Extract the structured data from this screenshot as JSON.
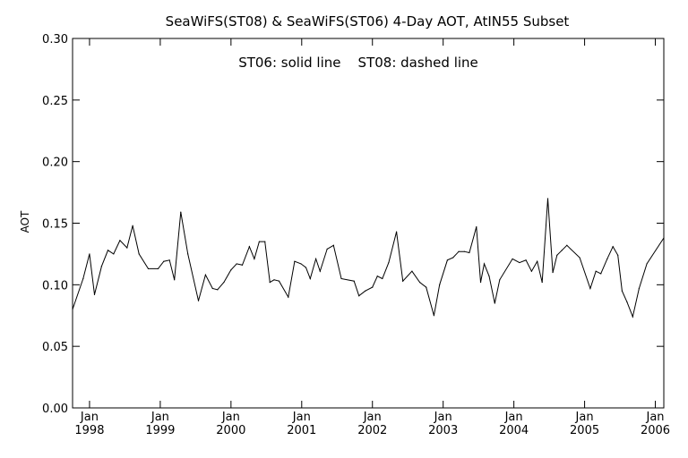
{
  "chart_data": {
    "type": "line",
    "title": "SeaWiFS(ST08) & SeaWiFS(ST06) 4-Day AOT, AtIN55 Subset",
    "annotation": "ST06: solid line    ST08: dashed line",
    "xlabel": "",
    "ylabel": "AOT",
    "ylim": [
      0.0,
      0.3
    ],
    "yticks": [
      "0.00",
      "0.05",
      "0.10",
      "0.15",
      "0.20",
      "0.25",
      "0.30"
    ],
    "xlim": [
      1997.76,
      2006.12
    ],
    "xticks": [
      {
        "month": "Jan",
        "year": "1998",
        "x": 1998.0
      },
      {
        "month": "Jan",
        "year": "1999",
        "x": 1999.0
      },
      {
        "month": "Jan",
        "year": "2000",
        "x": 2000.0
      },
      {
        "month": "Jan",
        "year": "2001",
        "x": 2001.0
      },
      {
        "month": "Jan",
        "year": "2002",
        "x": 2002.0
      },
      {
        "month": "Jan",
        "year": "2003",
        "x": 2003.0
      },
      {
        "month": "Jan",
        "year": "2004",
        "x": 2004.0
      },
      {
        "month": "Jan",
        "year": "2005",
        "x": 2005.0
      },
      {
        "month": "Jan",
        "year": "2006",
        "x": 2006.0
      }
    ],
    "grid": false,
    "series": [
      {
        "name": "ST06",
        "style": "solid",
        "color": "#000000",
        "x": [
          1997.76,
          1997.91,
          1998.0,
          1998.07,
          1998.17,
          1998.26,
          1998.34,
          1998.43,
          1998.53,
          1998.61,
          1998.7,
          1998.83,
          1998.97,
          1999.05,
          1999.13,
          1999.2,
          1999.29,
          1999.39,
          1999.54,
          1999.64,
          1999.74,
          1999.81,
          1999.9,
          2000.0,
          2000.08,
          2000.16,
          2000.26,
          2000.33,
          2000.4,
          2000.48,
          2000.55,
          2000.61,
          2000.68,
          2000.81,
          2000.9,
          2000.99,
          2001.06,
          2001.12,
          2001.2,
          2001.26,
          2001.36,
          2001.45,
          2001.56,
          2001.74,
          2001.81,
          2001.9,
          2002.0,
          2002.07,
          2002.14,
          2002.23,
          2002.34,
          2002.43,
          2002.56,
          2002.67,
          2002.76,
          2002.87,
          2002.95,
          2003.06,
          2003.14,
          2003.22,
          2003.3,
          2003.37,
          2003.47,
          2003.53,
          2003.58,
          2003.65,
          2003.73,
          2003.8,
          2003.98,
          2004.08,
          2004.17,
          2004.25,
          2004.33,
          2004.4,
          2004.48,
          2004.55,
          2004.61,
          2004.68,
          2004.75,
          2004.93,
          2005.08,
          2005.16,
          2005.23,
          2005.32,
          2005.4,
          2005.47,
          2005.53,
          2005.6,
          2005.68,
          2005.77,
          2005.88,
          2006.12
        ],
        "values": [
          0.08,
          0.105,
          0.125,
          0.092,
          0.115,
          0.128,
          0.125,
          0.136,
          0.13,
          0.148,
          0.125,
          0.113,
          0.113,
          0.119,
          0.12,
          0.104,
          0.159,
          0.125,
          0.087,
          0.108,
          0.097,
          0.096,
          0.102,
          0.112,
          0.117,
          0.116,
          0.131,
          0.121,
          0.135,
          0.135,
          0.102,
          0.104,
          0.103,
          0.09,
          0.119,
          0.117,
          0.114,
          0.105,
          0.121,
          0.111,
          0.129,
          0.132,
          0.105,
          0.103,
          0.091,
          0.095,
          0.098,
          0.107,
          0.105,
          0.118,
          0.143,
          0.103,
          0.111,
          0.102,
          0.098,
          0.075,
          0.1,
          0.12,
          0.122,
          0.127,
          0.127,
          0.126,
          0.147,
          0.102,
          0.117,
          0.107,
          0.085,
          0.104,
          0.121,
          0.118,
          0.12,
          0.111,
          0.119,
          0.102,
          0.17,
          0.11,
          0.124,
          0.128,
          0.132,
          0.122,
          0.097,
          0.111,
          0.109,
          0.121,
          0.131,
          0.124,
          0.095,
          0.086,
          0.074,
          0.097,
          0.117,
          0.138
        ]
      }
    ]
  }
}
